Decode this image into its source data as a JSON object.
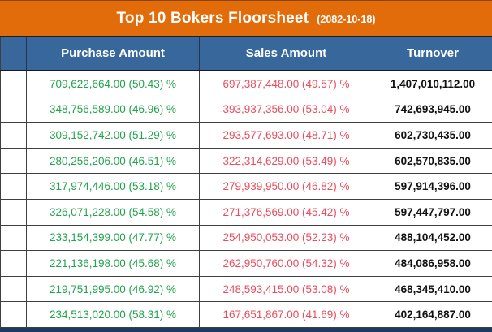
{
  "title": {
    "text": "Top 10 Bokers Floorsheet",
    "date": "(2082-10-18)"
  },
  "table": {
    "columns": [
      "",
      "Purchase Amount",
      "Sales Amount",
      "Turnover"
    ],
    "rows": [
      {
        "purchase": "709,622,664.00 (50.43) %",
        "sales": "697,387,448.00 (49.57) %",
        "turnover": "1,407,010,112.00"
      },
      {
        "purchase": "348,756,589.00 (46.96) %",
        "sales": "393,937,356.00 (53.04) %",
        "turnover": "742,693,945.00"
      },
      {
        "purchase": "309,152,742.00 (51.29) %",
        "sales": "293,577,693.00 (48.71) %",
        "turnover": "602,730,435.00"
      },
      {
        "purchase": "280,256,206.00 (46.51) %",
        "sales": "322,314,629.00 (53.49) %",
        "turnover": "602,570,835.00"
      },
      {
        "purchase": "317,974,446.00 (53.18) %",
        "sales": "279,939,950.00 (46.82) %",
        "turnover": "597,914,396.00"
      },
      {
        "purchase": "326,071,228.00 (54.58) %",
        "sales": "271,376,569.00 (45.42) %",
        "turnover": "597,447,797.00"
      },
      {
        "purchase": "233,154,399.00 (47.77) %",
        "sales": "254,950,053.00 (52.23) %",
        "turnover": "488,104,452.00"
      },
      {
        "purchase": "221,136,198.00 (45.68) %",
        "sales": "262,950,760.00 (54.32) %",
        "turnover": "484,086,958.00"
      },
      {
        "purchase": "219,751,995.00 (46.92) %",
        "sales": "248,593,415.00 (53.08) %",
        "turnover": "468,345,410.00"
      },
      {
        "purchase": "234,513,020.00 (58.31) %",
        "sales": "167,651,867.00 (41.69) %",
        "turnover": "402,164,887.00"
      }
    ]
  },
  "colors": {
    "orange": "#E36C0A",
    "header_blue": "#38689B",
    "green": "#21A34C",
    "red": "#E84D5F",
    "navy": "#1F3A60",
    "border": "#3F3F3F",
    "turnover_text": "#111111"
  }
}
